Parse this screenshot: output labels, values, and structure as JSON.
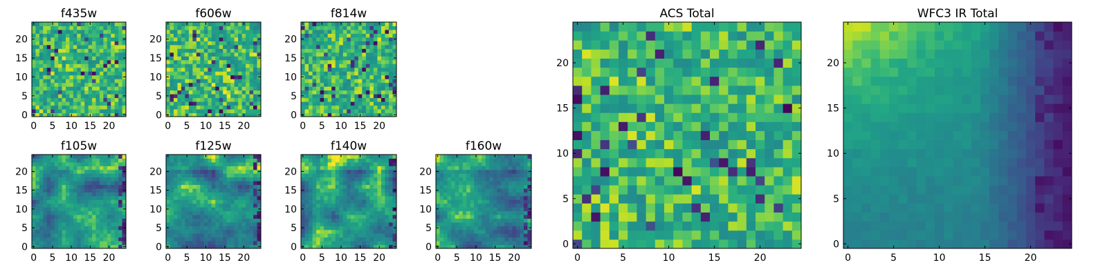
{
  "chart_data": [
    {
      "type": "heatmap",
      "title": "f435w",
      "xticks": [
        0,
        5,
        10,
        15,
        20
      ],
      "yticks": [
        0,
        5,
        10,
        15,
        20
      ],
      "grid_size": 25,
      "pattern": "noise",
      "colormap": "viridis"
    },
    {
      "type": "heatmap",
      "title": "f606w",
      "xticks": [
        0,
        5,
        10,
        15,
        20
      ],
      "yticks": [
        0,
        5,
        10,
        15,
        20
      ],
      "grid_size": 25,
      "pattern": "noise",
      "colormap": "viridis"
    },
    {
      "type": "heatmap",
      "title": "f814w",
      "xticks": [
        0,
        5,
        10,
        15,
        20
      ],
      "yticks": [
        0,
        5,
        10,
        15,
        20
      ],
      "grid_size": 25,
      "pattern": "noise",
      "colormap": "viridis"
    },
    {
      "type": "heatmap",
      "title": "f105w",
      "xticks": [
        0,
        5,
        10,
        15,
        20
      ],
      "yticks": [
        0,
        5,
        10,
        15,
        20
      ],
      "grid_size": 25,
      "pattern": "smooth",
      "colormap": "viridis"
    },
    {
      "type": "heatmap",
      "title": "f125w",
      "xticks": [
        0,
        5,
        10,
        15,
        20
      ],
      "yticks": [
        0,
        5,
        10,
        15,
        20
      ],
      "grid_size": 25,
      "pattern": "smooth",
      "colormap": "viridis"
    },
    {
      "type": "heatmap",
      "title": "f140w",
      "xticks": [
        0,
        5,
        10,
        15,
        20
      ],
      "yticks": [
        0,
        5,
        10,
        15,
        20
      ],
      "grid_size": 25,
      "pattern": "smooth",
      "colormap": "viridis"
    },
    {
      "type": "heatmap",
      "title": "f160w",
      "xticks": [
        0,
        5,
        10,
        15,
        20
      ],
      "yticks": [
        0,
        5,
        10,
        15,
        20
      ],
      "grid_size": 25,
      "pattern": "smooth",
      "colormap": "viridis"
    },
    {
      "type": "heatmap",
      "title": "ACS Total",
      "xticks": [
        0,
        5,
        10,
        15,
        20
      ],
      "yticks": [
        0,
        5,
        10,
        15,
        20
      ],
      "grid_size": 25,
      "pattern": "noise",
      "colormap": "viridis"
    },
    {
      "type": "heatmap",
      "title": "WFC3 IR Total",
      "xticks": [
        0,
        5,
        10,
        15,
        20
      ],
      "yticks": [
        0,
        5,
        10,
        15,
        20
      ],
      "grid_size": 25,
      "pattern": "gradient",
      "colormap": "viridis"
    }
  ],
  "colors": {
    "viridis_dark": "#440154",
    "viridis_mid": "#21918c",
    "viridis_bright": "#fde725"
  }
}
